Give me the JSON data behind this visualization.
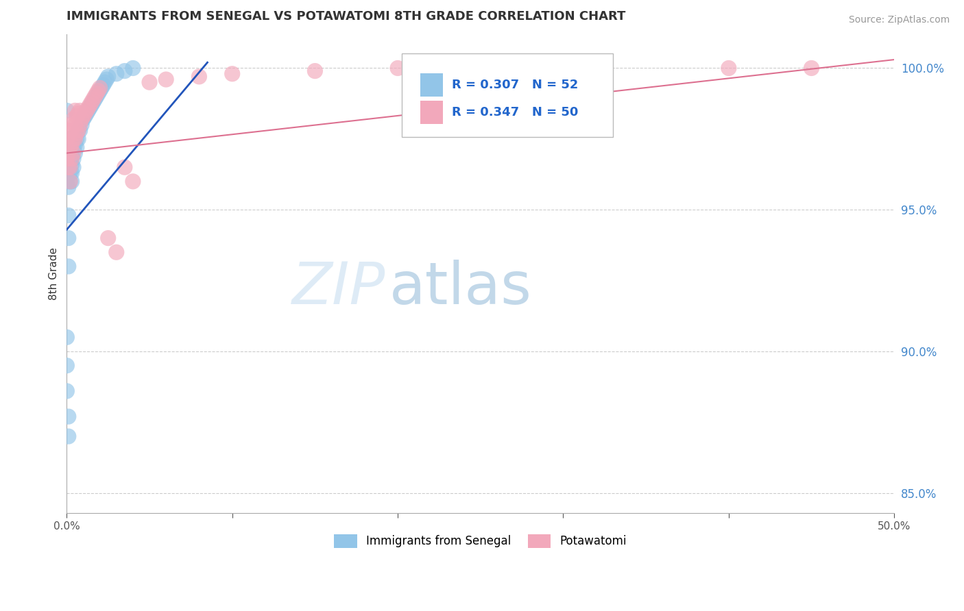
{
  "title": "IMMIGRANTS FROM SENEGAL VS POTAWATOMI 8TH GRADE CORRELATION CHART",
  "source": "Source: ZipAtlas.com",
  "ylabel": "8th Grade",
  "y_tick_labels": [
    "85.0%",
    "90.0%",
    "95.0%",
    "100.0%"
  ],
  "y_tick_values": [
    0.85,
    0.9,
    0.95,
    1.0
  ],
  "xlim": [
    0.0,
    0.5
  ],
  "ylim": [
    0.843,
    1.012
  ],
  "legend_blue_label": "Immigrants from Senegal",
  "legend_pink_label": "Potawatomi",
  "r_blue": 0.307,
  "n_blue": 52,
  "r_pink": 0.347,
  "n_pink": 50,
  "blue_color": "#92C5E8",
  "pink_color": "#F2A8BB",
  "trend_blue": "#2255BB",
  "trend_pink": "#DD7090",
  "watermark_zip": "ZIP",
  "watermark_atlas": "atlas",
  "background_color": "#FFFFFF",
  "grid_color": "#CCCCCC",
  "blue_trend_x": [
    0.0,
    0.085
  ],
  "blue_trend_y": [
    0.943,
    1.002
  ],
  "pink_trend_x": [
    0.0,
    0.5
  ],
  "pink_trend_y": [
    0.97,
    1.003
  ],
  "blue_x": [
    0.0,
    0.0,
    0.0,
    0.0,
    0.0,
    0.0,
    0.001,
    0.001,
    0.001,
    0.001,
    0.001,
    0.001,
    0.002,
    0.002,
    0.002,
    0.002,
    0.002,
    0.003,
    0.003,
    0.003,
    0.003,
    0.004,
    0.004,
    0.004,
    0.005,
    0.005,
    0.005,
    0.006,
    0.006,
    0.007,
    0.007,
    0.008,
    0.009,
    0.01,
    0.011,
    0.012,
    0.013,
    0.014,
    0.015,
    0.016,
    0.017,
    0.018,
    0.019,
    0.02,
    0.021,
    0.022,
    0.023,
    0.024,
    0.025,
    0.03,
    0.035,
    0.04
  ],
  "blue_y": [
    0.886,
    0.895,
    0.905,
    0.96,
    0.968,
    0.985,
    0.87,
    0.877,
    0.93,
    0.94,
    0.948,
    0.958,
    0.96,
    0.963,
    0.967,
    0.97,
    0.975,
    0.96,
    0.963,
    0.966,
    0.969,
    0.965,
    0.968,
    0.972,
    0.97,
    0.973,
    0.976,
    0.972,
    0.975,
    0.975,
    0.978,
    0.978,
    0.98,
    0.982,
    0.983,
    0.984,
    0.985,
    0.986,
    0.987,
    0.988,
    0.989,
    0.99,
    0.991,
    0.992,
    0.993,
    0.994,
    0.995,
    0.996,
    0.997,
    0.998,
    0.999,
    1.0
  ],
  "pink_x": [
    0.0,
    0.0,
    0.001,
    0.001,
    0.001,
    0.002,
    0.002,
    0.002,
    0.002,
    0.003,
    0.003,
    0.003,
    0.004,
    0.004,
    0.004,
    0.005,
    0.005,
    0.005,
    0.006,
    0.006,
    0.007,
    0.007,
    0.008,
    0.008,
    0.009,
    0.01,
    0.011,
    0.012,
    0.013,
    0.014,
    0.015,
    0.016,
    0.017,
    0.018,
    0.019,
    0.02,
    0.025,
    0.03,
    0.035,
    0.04,
    0.05,
    0.06,
    0.08,
    0.1,
    0.15,
    0.2,
    0.25,
    0.3,
    0.4,
    0.45
  ],
  "pink_y": [
    0.968,
    0.975,
    0.965,
    0.97,
    0.978,
    0.96,
    0.965,
    0.972,
    0.98,
    0.968,
    0.973,
    0.978,
    0.97,
    0.975,
    0.982,
    0.975,
    0.98,
    0.985,
    0.977,
    0.983,
    0.978,
    0.984,
    0.98,
    0.985,
    0.982,
    0.983,
    0.984,
    0.985,
    0.986,
    0.987,
    0.988,
    0.989,
    0.99,
    0.991,
    0.992,
    0.993,
    0.94,
    0.935,
    0.965,
    0.96,
    0.995,
    0.996,
    0.997,
    0.998,
    0.999,
    1.0,
    1.0,
    1.0,
    1.0,
    1.0
  ]
}
